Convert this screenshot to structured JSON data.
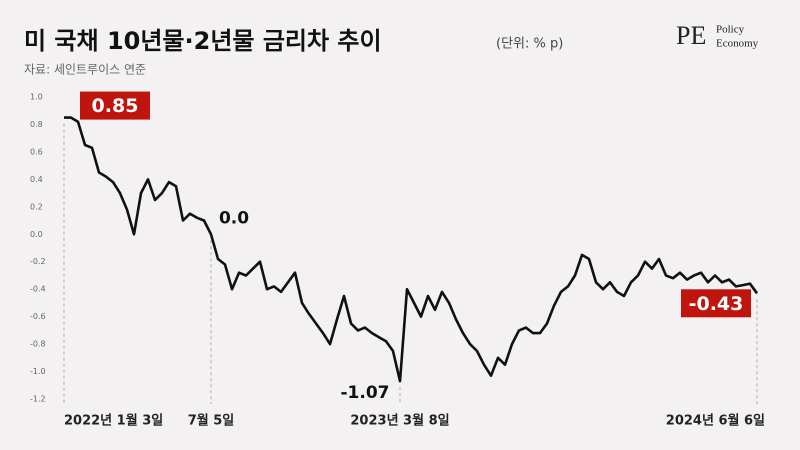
{
  "chart_data": {
    "type": "line",
    "title": "미 국채 10년물·2년물 금리차 추이",
    "unit": "(단위: % p)",
    "source": "자료: 세인트루이스 연준",
    "categories": [
      "2022년 1월 3일",
      null,
      null,
      null,
      null,
      null,
      null,
      null,
      null,
      null,
      null,
      null,
      null,
      null,
      null,
      null,
      null,
      null,
      null,
      null,
      null,
      "7월 5일",
      null,
      null,
      null,
      null,
      null,
      null,
      null,
      null,
      null,
      null,
      null,
      null,
      null,
      null,
      null,
      null,
      null,
      null,
      null,
      null,
      null,
      null,
      null,
      null,
      null,
      null,
      "2023년 3월 8일",
      null,
      null,
      null,
      null,
      null,
      null,
      null,
      null,
      null,
      null,
      null,
      null,
      null,
      null,
      null,
      null,
      null,
      null,
      null,
      null,
      null,
      null,
      null,
      null,
      null,
      null,
      null,
      null,
      null,
      null,
      null,
      null,
      null,
      null,
      null,
      null,
      null,
      null,
      null,
      null,
      null,
      null,
      null,
      null,
      null,
      null,
      null,
      null,
      null,
      null,
      "2024년 6월 6일"
    ],
    "values": [
      0.85,
      0.85,
      0.82,
      0.65,
      0.63,
      0.45,
      0.42,
      0.38,
      0.3,
      0.18,
      0.0,
      0.3,
      0.4,
      0.25,
      0.3,
      0.38,
      0.35,
      0.1,
      0.15,
      0.12,
      0.1,
      0.0,
      -0.18,
      -0.22,
      -0.4,
      -0.28,
      -0.3,
      -0.25,
      -0.2,
      -0.4,
      -0.38,
      -0.42,
      -0.35,
      -0.28,
      -0.5,
      -0.58,
      -0.65,
      -0.72,
      -0.8,
      -0.62,
      -0.45,
      -0.65,
      -0.7,
      -0.68,
      -0.72,
      -0.75,
      -0.78,
      -0.85,
      -1.07,
      -0.4,
      -0.5,
      -0.6,
      -0.45,
      -0.55,
      -0.42,
      -0.5,
      -0.62,
      -0.72,
      -0.8,
      -0.85,
      -0.95,
      -1.03,
      -0.9,
      -0.95,
      -0.8,
      -0.7,
      -0.68,
      -0.72,
      -0.72,
      -0.65,
      -0.52,
      -0.42,
      -0.38,
      -0.3,
      -0.15,
      -0.18,
      -0.35,
      -0.4,
      -0.35,
      -0.42,
      -0.45,
      -0.35,
      -0.3,
      -0.2,
      -0.25,
      -0.18,
      -0.3,
      -0.32,
      -0.28,
      -0.33,
      -0.3,
      -0.28,
      -0.35,
      -0.3,
      -0.35,
      -0.33,
      -0.38,
      -0.37,
      -0.36,
      -0.43
    ],
    "value_labels": [
      "0.85",
      null,
      null,
      null,
      null,
      null,
      null,
      null,
      null,
      null,
      null,
      null,
      null,
      null,
      null,
      null,
      null,
      null,
      null,
      null,
      null,
      "0.0",
      null,
      null,
      null,
      null,
      null,
      null,
      null,
      null,
      null,
      null,
      null,
      null,
      null,
      null,
      null,
      null,
      null,
      null,
      null,
      null,
      null,
      null,
      null,
      null,
      null,
      null,
      "-1.07",
      null,
      null,
      null,
      null,
      null,
      null,
      null,
      null,
      null,
      null,
      null,
      null,
      null,
      null,
      null,
      null,
      null,
      null,
      null,
      null,
      null,
      null,
      null,
      null,
      null,
      null,
      null,
      null,
      null,
      null,
      null,
      null,
      null,
      null,
      null,
      null,
      null,
      null,
      null,
      null,
      null,
      null,
      null,
      null,
      null,
      null,
      null,
      null,
      null,
      null,
      "-0.43"
    ],
    "color": "#111111",
    "highlight_color": "#c0140f",
    "ylim": [
      -1.2,
      1.0
    ],
    "yticks": [
      {
        "value": 1,
        "label": "1.0"
      },
      0.8,
      0.6,
      0.4,
      0.2,
      {
        "value": 0,
        "label": "0.0"
      },
      -0.2,
      -0.4,
      -0.6,
      -0.8,
      {
        "value": -1,
        "label": "-1.0"
      },
      -1.2
    ],
    "grid": false
  },
  "logo": {
    "mark": "PE",
    "lines": [
      "Policy",
      "Economy"
    ]
  }
}
